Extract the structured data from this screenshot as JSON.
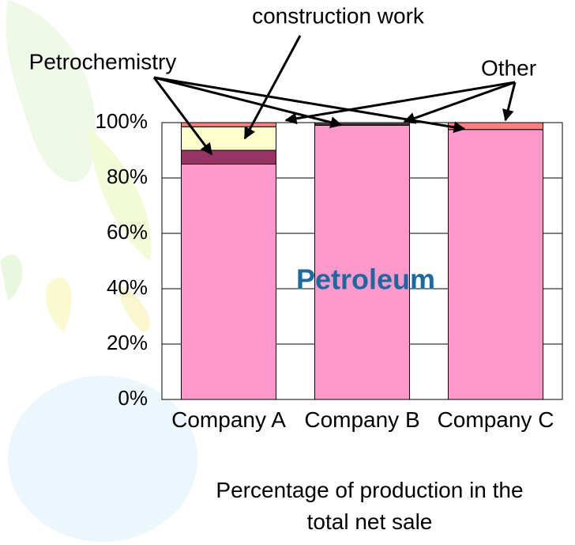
{
  "chart_data": {
    "type": "stacked_bar",
    "x_label": "Percentage of production in the total net sale",
    "categories": [
      "Company A",
      "Company B",
      "Company C"
    ],
    "series": [
      {
        "name": "Petroleum",
        "color": "#ff99cc",
        "values": [
          85,
          99,
          97.5
        ]
      },
      {
        "name": "Petrochemistry",
        "color": "#993366",
        "values": [
          5,
          0.5,
          0
        ]
      },
      {
        "name": "construction work",
        "color": "#ffffcc",
        "values": [
          8.5,
          0,
          0
        ]
      },
      {
        "name": "Other",
        "color": "#ff8080",
        "values": [
          1.5,
          0.5,
          2.5
        ]
      }
    ],
    "ylim": [
      0,
      100
    ],
    "yticks": [
      {
        "value": 0,
        "label": "0%"
      },
      {
        "value": 20,
        "label": "20%"
      },
      {
        "value": 40,
        "label": "40%"
      },
      {
        "value": 60,
        "label": "60%"
      },
      {
        "value": 80,
        "label": "80%"
      },
      {
        "value": 100,
        "label": "100%"
      }
    ],
    "grid": true
  }
}
